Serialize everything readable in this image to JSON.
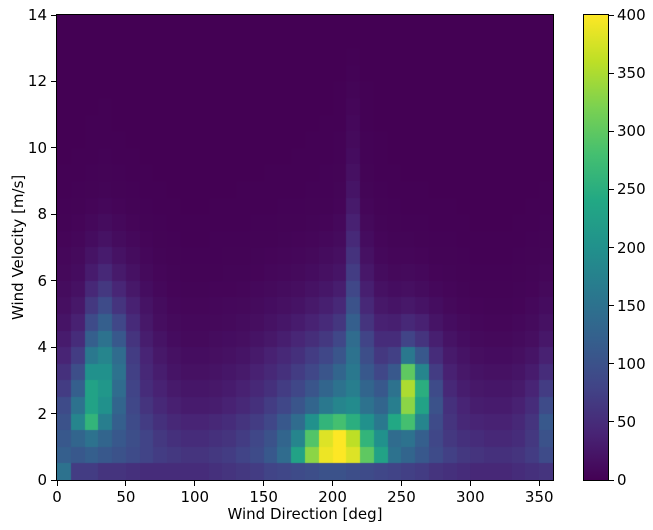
{
  "figure": {
    "background_color": "#ffffff",
    "spine_color": "#000000",
    "text_color": "#000000"
  },
  "chart_data": {
    "type": "heatmap",
    "title": "",
    "xlabel": "Wind Direction [deg]",
    "ylabel": "Wind Velocity [m/s]",
    "x_range": [
      0,
      360
    ],
    "y_range": [
      0,
      14
    ],
    "x_ticks": [
      0,
      50,
      100,
      150,
      200,
      250,
      300,
      350
    ],
    "y_ticks": [
      0,
      2,
      4,
      6,
      8,
      10,
      12,
      14
    ],
    "grid": false,
    "x_bin_size_deg": 10,
    "y_bin_size_ms": 0.5,
    "rows_order": "bottom-to-top",
    "colorbar": {
      "vmin": 0,
      "vmax": 400,
      "ticks": [
        0,
        50,
        100,
        150,
        200,
        250,
        300,
        350,
        400
      ],
      "position": "right"
    },
    "colormap": {
      "name": "viridis",
      "stops": [
        [
          0.0,
          "#440154"
        ],
        [
          0.1,
          "#482475"
        ],
        [
          0.2,
          "#414487"
        ],
        [
          0.3,
          "#355f8d"
        ],
        [
          0.4,
          "#2a788e"
        ],
        [
          0.5,
          "#21918c"
        ],
        [
          0.6,
          "#22a884"
        ],
        [
          0.7,
          "#44bf70"
        ],
        [
          0.8,
          "#7ad151"
        ],
        [
          0.9,
          "#bddf26"
        ],
        [
          1.0,
          "#fde725"
        ]
      ]
    },
    "matrix": [
      [
        150,
        70,
        70,
        60,
        60,
        55,
        50,
        50,
        50,
        50,
        50,
        55,
        60,
        65,
        70,
        80,
        85,
        90,
        95,
        100,
        100,
        95,
        90,
        85,
        80,
        75,
        70,
        60,
        55,
        50,
        45,
        45,
        45,
        50,
        55,
        60
      ],
      [
        120,
        110,
        120,
        110,
        100,
        90,
        80,
        70,
        65,
        60,
        60,
        65,
        70,
        80,
        90,
        110,
        140,
        230,
        330,
        390,
        400,
        380,
        300,
        230,
        150,
        130,
        110,
        90,
        75,
        65,
        60,
        55,
        55,
        60,
        70,
        90
      ],
      [
        110,
        130,
        150,
        130,
        110,
        95,
        80,
        65,
        55,
        50,
        50,
        55,
        60,
        70,
        85,
        100,
        130,
        180,
        290,
        380,
        400,
        360,
        260,
        200,
        140,
        150,
        120,
        85,
        65,
        55,
        50,
        45,
        45,
        50,
        65,
        100
      ],
      [
        100,
        180,
        260,
        170,
        120,
        90,
        70,
        55,
        45,
        40,
        40,
        45,
        50,
        60,
        70,
        85,
        110,
        140,
        200,
        260,
        280,
        250,
        200,
        160,
        240,
        280,
        180,
        90,
        60,
        45,
        40,
        38,
        38,
        45,
        60,
        110
      ],
      [
        90,
        150,
        230,
        200,
        130,
        85,
        60,
        45,
        35,
        30,
        30,
        32,
        38,
        45,
        55,
        70,
        85,
        105,
        130,
        160,
        180,
        190,
        150,
        130,
        170,
        330,
        230,
        100,
        55,
        40,
        32,
        30,
        30,
        36,
        50,
        90
      ],
      [
        70,
        120,
        230,
        210,
        140,
        80,
        50,
        38,
        28,
        24,
        24,
        26,
        30,
        36,
        45,
        55,
        70,
        85,
        105,
        130,
        150,
        170,
        130,
        110,
        150,
        350,
        250,
        90,
        45,
        32,
        26,
        24,
        24,
        28,
        40,
        70
      ],
      [
        55,
        95,
        200,
        200,
        150,
        75,
        45,
        32,
        22,
        18,
        18,
        20,
        24,
        28,
        36,
        45,
        55,
        70,
        85,
        105,
        130,
        160,
        110,
        85,
        110,
        300,
        180,
        70,
        36,
        26,
        20,
        18,
        18,
        22,
        30,
        50
      ],
      [
        40,
        70,
        160,
        180,
        140,
        70,
        40,
        26,
        18,
        14,
        14,
        16,
        18,
        22,
        28,
        36,
        45,
        55,
        70,
        85,
        105,
        150,
        95,
        65,
        75,
        160,
        110,
        50,
        28,
        20,
        15,
        13,
        13,
        16,
        22,
        36
      ],
      [
        30,
        50,
        120,
        150,
        110,
        60,
        32,
        20,
        13,
        10,
        10,
        12,
        14,
        16,
        20,
        26,
        33,
        42,
        52,
        65,
        85,
        140,
        80,
        50,
        50,
        80,
        60,
        34,
        20,
        14,
        10,
        9,
        9,
        11,
        15,
        25
      ],
      [
        22,
        36,
        90,
        120,
        85,
        48,
        26,
        15,
        10,
        8,
        8,
        9,
        10,
        12,
        15,
        19,
        24,
        30,
        38,
        48,
        62,
        120,
        60,
        36,
        34,
        45,
        36,
        22,
        14,
        10,
        7,
        6,
        6,
        8,
        11,
        18
      ],
      [
        16,
        26,
        65,
        90,
        60,
        36,
        20,
        12,
        7,
        6,
        6,
        7,
        8,
        9,
        11,
        14,
        17,
        21,
        27,
        34,
        45,
        100,
        45,
        26,
        22,
        26,
        21,
        14,
        9,
        6,
        5,
        4,
        4,
        5,
        8,
        13
      ],
      [
        12,
        18,
        45,
        65,
        42,
        26,
        14,
        8,
        5,
        4,
        4,
        5,
        5,
        6,
        8,
        10,
        12,
        15,
        19,
        24,
        32,
        85,
        34,
        18,
        14,
        16,
        12,
        8,
        6,
        4,
        3,
        3,
        3,
        4,
        5,
        9
      ],
      [
        9,
        13,
        30,
        45,
        28,
        18,
        10,
        6,
        4,
        3,
        3,
        3,
        4,
        4,
        5,
        7,
        8,
        10,
        13,
        17,
        22,
        70,
        25,
        12,
        9,
        10,
        8,
        5,
        4,
        3,
        2,
        2,
        2,
        3,
        4,
        6
      ],
      [
        7,
        10,
        20,
        30,
        19,
        12,
        7,
        4,
        3,
        2,
        2,
        2,
        3,
        3,
        4,
        5,
        6,
        7,
        9,
        12,
        16,
        58,
        18,
        8,
        6,
        6,
        5,
        3,
        3,
        2,
        1,
        1,
        1,
        2,
        3,
        4
      ],
      [
        5,
        7,
        13,
        19,
        12,
        8,
        5,
        3,
        2,
        1,
        1,
        2,
        2,
        2,
        3,
        3,
        4,
        5,
        6,
        8,
        11,
        46,
        13,
        6,
        4,
        4,
        3,
        2,
        2,
        1,
        1,
        1,
        1,
        1,
        2,
        3
      ],
      [
        3,
        5,
        8,
        12,
        8,
        5,
        3,
        2,
        1,
        1,
        1,
        1,
        1,
        1,
        2,
        2,
        3,
        3,
        4,
        5,
        8,
        36,
        9,
        4,
        3,
        2,
        2,
        1,
        1,
        1,
        0,
        0,
        0,
        1,
        1,
        2
      ],
      [
        2,
        3,
        5,
        7,
        5,
        3,
        2,
        1,
        1,
        0,
        0,
        1,
        1,
        1,
        1,
        1,
        2,
        2,
        3,
        3,
        5,
        28,
        6,
        3,
        2,
        1,
        1,
        1,
        1,
        0,
        0,
        0,
        0,
        0,
        1,
        1
      ],
      [
        1,
        2,
        3,
        4,
        3,
        2,
        1,
        1,
        0,
        0,
        0,
        0,
        0,
        1,
        1,
        1,
        1,
        1,
        2,
        2,
        4,
        22,
        4,
        2,
        1,
        1,
        1,
        0,
        0,
        0,
        0,
        0,
        0,
        0,
        0,
        1
      ],
      [
        1,
        1,
        2,
        3,
        2,
        1,
        1,
        0,
        0,
        0,
        0,
        0,
        0,
        0,
        0,
        1,
        1,
        1,
        1,
        2,
        3,
        17,
        3,
        1,
        1,
        0,
        0,
        0,
        0,
        0,
        0,
        0,
        0,
        0,
        0,
        0
      ],
      [
        0,
        1,
        1,
        2,
        1,
        1,
        0,
        0,
        0,
        0,
        0,
        0,
        0,
        0,
        0,
        0,
        0,
        1,
        1,
        1,
        2,
        13,
        2,
        1,
        0,
        0,
        0,
        0,
        0,
        0,
        0,
        0,
        0,
        0,
        0,
        0
      ],
      [
        0,
        0,
        1,
        1,
        1,
        0,
        0,
        0,
        0,
        0,
        0,
        0,
        0,
        0,
        0,
        0,
        0,
        0,
        1,
        1,
        2,
        10,
        2,
        1,
        0,
        0,
        0,
        0,
        0,
        0,
        0,
        0,
        0,
        0,
        0,
        0
      ],
      [
        0,
        0,
        1,
        1,
        0,
        0,
        0,
        0,
        0,
        0,
        0,
        0,
        0,
        0,
        0,
        0,
        0,
        0,
        0,
        1,
        1,
        8,
        1,
        0,
        0,
        0,
        0,
        0,
        0,
        0,
        0,
        0,
        0,
        0,
        0,
        0
      ],
      [
        0,
        0,
        0,
        1,
        0,
        0,
        0,
        0,
        0,
        0,
        0,
        0,
        0,
        0,
        0,
        0,
        0,
        0,
        0,
        0,
        1,
        6,
        1,
        0,
        0,
        0,
        0,
        0,
        0,
        0,
        0,
        0,
        0,
        0,
        0,
        0
      ],
      [
        0,
        0,
        0,
        0,
        0,
        0,
        0,
        0,
        0,
        0,
        0,
        0,
        0,
        0,
        0,
        0,
        0,
        0,
        0,
        0,
        1,
        4,
        1,
        0,
        0,
        0,
        0,
        0,
        0,
        0,
        0,
        0,
        0,
        0,
        0,
        0
      ],
      [
        0,
        0,
        0,
        0,
        0,
        0,
        0,
        0,
        0,
        0,
        0,
        0,
        0,
        0,
        0,
        0,
        0,
        0,
        0,
        0,
        0,
        2,
        0,
        0,
        0,
        0,
        0,
        0,
        0,
        0,
        0,
        0,
        0,
        0,
        0,
        0
      ],
      [
        0,
        0,
        0,
        0,
        0,
        0,
        0,
        0,
        0,
        0,
        0,
        0,
        0,
        0,
        0,
        0,
        0,
        0,
        0,
        0,
        0,
        1,
        0,
        0,
        0,
        0,
        0,
        0,
        0,
        0,
        0,
        0,
        0,
        0,
        0,
        0
      ],
      [
        0,
        0,
        0,
        0,
        0,
        0,
        0,
        0,
        0,
        0,
        0,
        0,
        0,
        0,
        0,
        0,
        0,
        0,
        0,
        0,
        0,
        0,
        0,
        0,
        0,
        0,
        0,
        0,
        0,
        0,
        0,
        0,
        0,
        0,
        0,
        0
      ],
      [
        0,
        0,
        0,
        0,
        0,
        0,
        0,
        0,
        0,
        0,
        0,
        0,
        0,
        0,
        0,
        0,
        0,
        0,
        0,
        0,
        0,
        0,
        0,
        0,
        0,
        0,
        0,
        0,
        0,
        0,
        0,
        0,
        0,
        0,
        0,
        0
      ]
    ]
  }
}
